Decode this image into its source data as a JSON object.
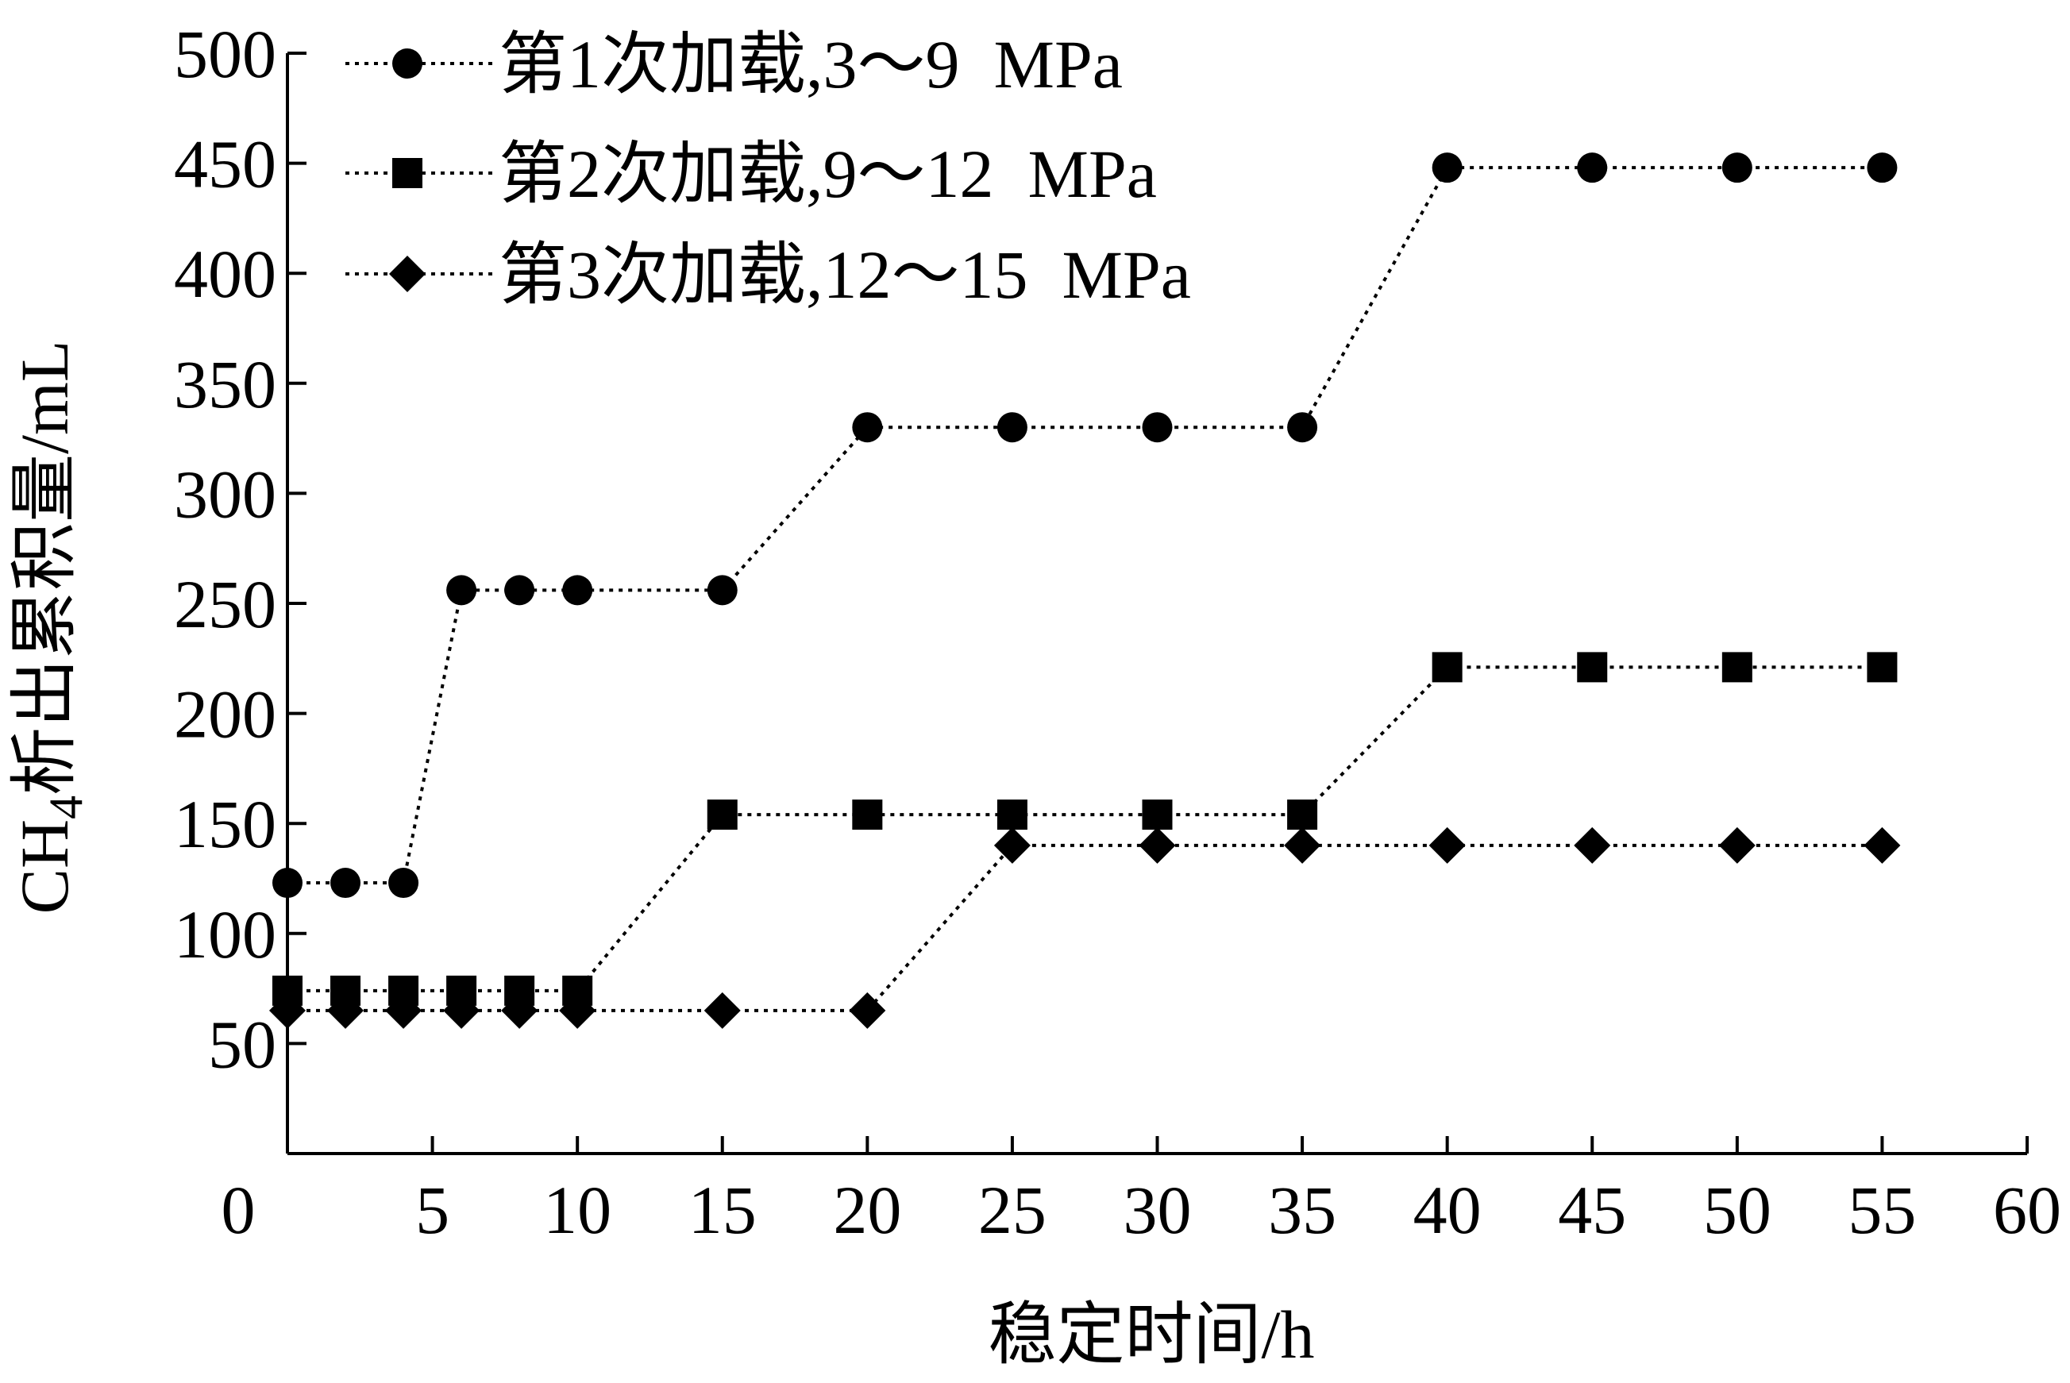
{
  "chart_data": {
    "type": "line",
    "x": [
      0,
      2,
      4,
      6,
      8,
      10,
      15,
      20,
      25,
      30,
      35,
      40,
      45,
      50,
      55
    ],
    "series": [
      {
        "name": "第1次加载,3～9  MPa",
        "marker": "circle",
        "x": [
          0,
          2,
          4,
          6,
          8,
          10,
          15,
          20,
          25,
          30,
          35,
          40,
          45,
          50,
          55
        ],
        "values": [
          123,
          123,
          123,
          256,
          256,
          256,
          256,
          330,
          330,
          330,
          330,
          448,
          448,
          448,
          448
        ]
      },
      {
        "name": "第2次加载,9～12  MPa",
        "marker": "square",
        "x": [
          0,
          2,
          4,
          6,
          8,
          10,
          15,
          20,
          25,
          30,
          35,
          40,
          45,
          50,
          55
        ],
        "values": [
          74,
          74,
          74,
          74,
          74,
          74,
          154,
          154,
          154,
          154,
          154,
          221,
          221,
          221,
          221
        ]
      },
      {
        "name": "第3次加载,12～15  MPa",
        "marker": "diamond",
        "x": [
          0,
          2,
          4,
          6,
          8,
          10,
          15,
          20,
          25,
          30,
          35,
          40,
          45,
          50,
          55
        ],
        "values": [
          65,
          65,
          65,
          65,
          65,
          65,
          65,
          65,
          140,
          140,
          140,
          140,
          140,
          140,
          140
        ]
      }
    ],
    "xlabel": "稳定时间/h",
    "ylabel_prefix": "CH",
    "ylabel_subscript": "4",
    "ylabel_suffix": "析出累积量/mL",
    "xlim": [
      0,
      60
    ],
    "ylim": [
      0,
      500
    ],
    "xticks": [
      0,
      5,
      10,
      15,
      20,
      25,
      30,
      35,
      40,
      45,
      50,
      55,
      60
    ],
    "yticks": [
      50,
      100,
      150,
      200,
      250,
      300,
      350,
      400,
      450,
      500
    ],
    "grid": false,
    "legend_position": "top-left",
    "line_style": "dotted",
    "color": "#000000"
  }
}
